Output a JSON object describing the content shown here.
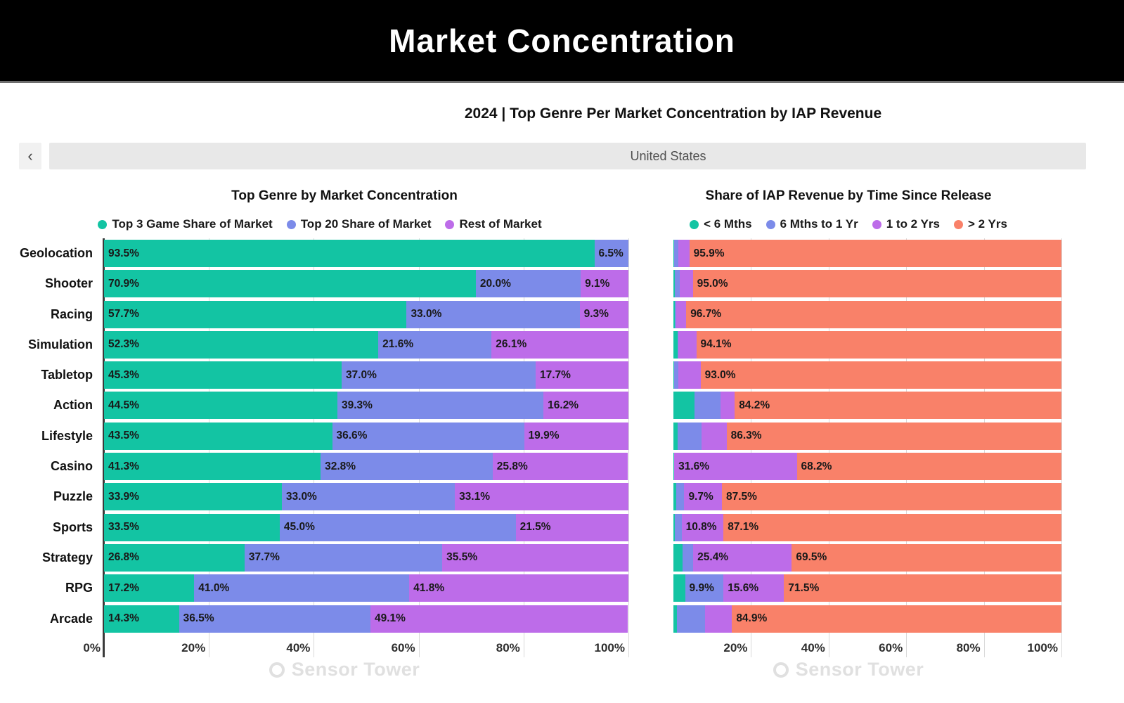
{
  "header": {
    "title": "Market Concentration"
  },
  "subtitle": "2024 | Top Genre Per Market Concentration by IAP Revenue",
  "region": {
    "back_label": "‹",
    "label": "United States"
  },
  "watermark": {
    "text": "Sensor Tower"
  },
  "colors": {
    "teal": "#13C4A3",
    "blue": "#7C8BE9",
    "purple": "#BD6CE9",
    "salmon": "#F98169"
  },
  "categories": [
    "Geolocation",
    "Shooter",
    "Racing",
    "Simulation",
    "Tabletop",
    "Action",
    "Lifestyle",
    "Casino",
    "Puzzle",
    "Sports",
    "Strategy",
    "RPG",
    "Arcade"
  ],
  "chart_data": [
    {
      "type": "bar",
      "orientation": "horizontal",
      "stacked": true,
      "title": "Top Genre by Market Concentration",
      "categories": [
        "Geolocation",
        "Shooter",
        "Racing",
        "Simulation",
        "Tabletop",
        "Action",
        "Lifestyle",
        "Casino",
        "Puzzle",
        "Sports",
        "Strategy",
        "RPG",
        "Arcade"
      ],
      "xlim": [
        0,
        100
      ],
      "x_ticks": [
        "0%",
        "20%",
        "40%",
        "60%",
        "80%",
        "100%"
      ],
      "grid": "vertical",
      "legend_position": "top",
      "series": [
        {
          "name": "Top 3 Game Share of Market",
          "color": "#13C4A3",
          "values": [
            93.5,
            70.9,
            57.7,
            52.3,
            45.3,
            44.5,
            43.5,
            41.3,
            33.9,
            33.5,
            26.8,
            17.2,
            14.3
          ],
          "labels": [
            "93.5%",
            "70.9%",
            "57.7%",
            "52.3%",
            "45.3%",
            "44.5%",
            "43.5%",
            "41.3%",
            "33.9%",
            "33.5%",
            "26.8%",
            "17.2%",
            "14.3%"
          ]
        },
        {
          "name": "Top 20 Share of Market",
          "color": "#7C8BE9",
          "values": [
            6.5,
            20.0,
            33.0,
            21.6,
            37.0,
            39.3,
            36.6,
            32.8,
            33.0,
            45.0,
            37.7,
            41.0,
            36.5
          ],
          "labels": [
            "6.5%",
            "20.0%",
            "33.0%",
            "21.6%",
            "37.0%",
            "39.3%",
            "36.6%",
            "32.8%",
            "33.0%",
            "45.0%",
            "37.7%",
            "41.0%",
            "36.5%"
          ]
        },
        {
          "name": "Rest of Market",
          "color": "#BD6CE9",
          "values": [
            0,
            9.1,
            9.3,
            26.1,
            17.7,
            16.2,
            19.9,
            25.8,
            33.1,
            21.5,
            35.5,
            41.8,
            49.1
          ],
          "labels": [
            null,
            "9.1%",
            "9.3%",
            "26.1%",
            "17.7%",
            "16.2%",
            "19.9%",
            "25.8%",
            "33.1%",
            "21.5%",
            "35.5%",
            "41.8%",
            "49.1%"
          ]
        }
      ]
    },
    {
      "type": "bar",
      "orientation": "horizontal",
      "stacked": true,
      "title": "Share of IAP Revenue by Time Since Release",
      "categories": [
        "Geolocation",
        "Shooter",
        "Racing",
        "Simulation",
        "Tabletop",
        "Action",
        "Lifestyle",
        "Casino",
        "Puzzle",
        "Sports",
        "Strategy",
        "RPG",
        "Arcade"
      ],
      "xlim": [
        0,
        100
      ],
      "x_ticks": [
        "20%",
        "40%",
        "60%",
        "80%",
        "100%"
      ],
      "grid": "vertical",
      "legend_position": "top",
      "note": "Unlabeled small segments estimated from pixel widths",
      "series": [
        {
          "name": "< 6 Mths",
          "color": "#13C4A3",
          "values": [
            0.2,
            0.4,
            0.3,
            1.0,
            0.2,
            5.4,
            1.0,
            0.1,
            0.7,
            0.4,
            2.3,
            3.0,
            0.9
          ],
          "labels": [
            null,
            null,
            null,
            null,
            null,
            null,
            null,
            null,
            null,
            null,
            null,
            null,
            null
          ]
        },
        {
          "name": "6 Mths to 1 Yr",
          "color": "#7C8BE9",
          "values": [
            1.0,
            1.3,
            0.4,
            0.3,
            1.0,
            6.8,
            6.3,
            0.1,
            2.1,
            1.7,
            2.8,
            9.9,
            7.2
          ],
          "labels": [
            null,
            null,
            null,
            null,
            null,
            null,
            null,
            null,
            null,
            null,
            null,
            "9.9%",
            null
          ]
        },
        {
          "name": "1 to 2 Yrs",
          "color": "#BD6CE9",
          "values": [
            2.9,
            3.3,
            2.6,
            4.6,
            5.8,
            3.6,
            6.4,
            31.6,
            9.7,
            10.8,
            25.4,
            15.6,
            7.0
          ],
          "labels": [
            null,
            null,
            null,
            null,
            null,
            null,
            null,
            "31.6%",
            "9.7%",
            "10.8%",
            "25.4%",
            "15.6%",
            null
          ]
        },
        {
          "name": "> 2 Yrs",
          "color": "#F98169",
          "values": [
            95.9,
            95.0,
            96.7,
            94.1,
            93.0,
            84.2,
            86.3,
            68.2,
            87.5,
            87.1,
            69.5,
            71.5,
            84.9
          ],
          "labels": [
            "95.9%",
            "95.0%",
            "96.7%",
            "94.1%",
            "93.0%",
            "84.2%",
            "86.3%",
            "68.2%",
            "87.5%",
            "87.1%",
            "69.5%",
            "71.5%",
            "84.9%"
          ]
        }
      ]
    }
  ]
}
